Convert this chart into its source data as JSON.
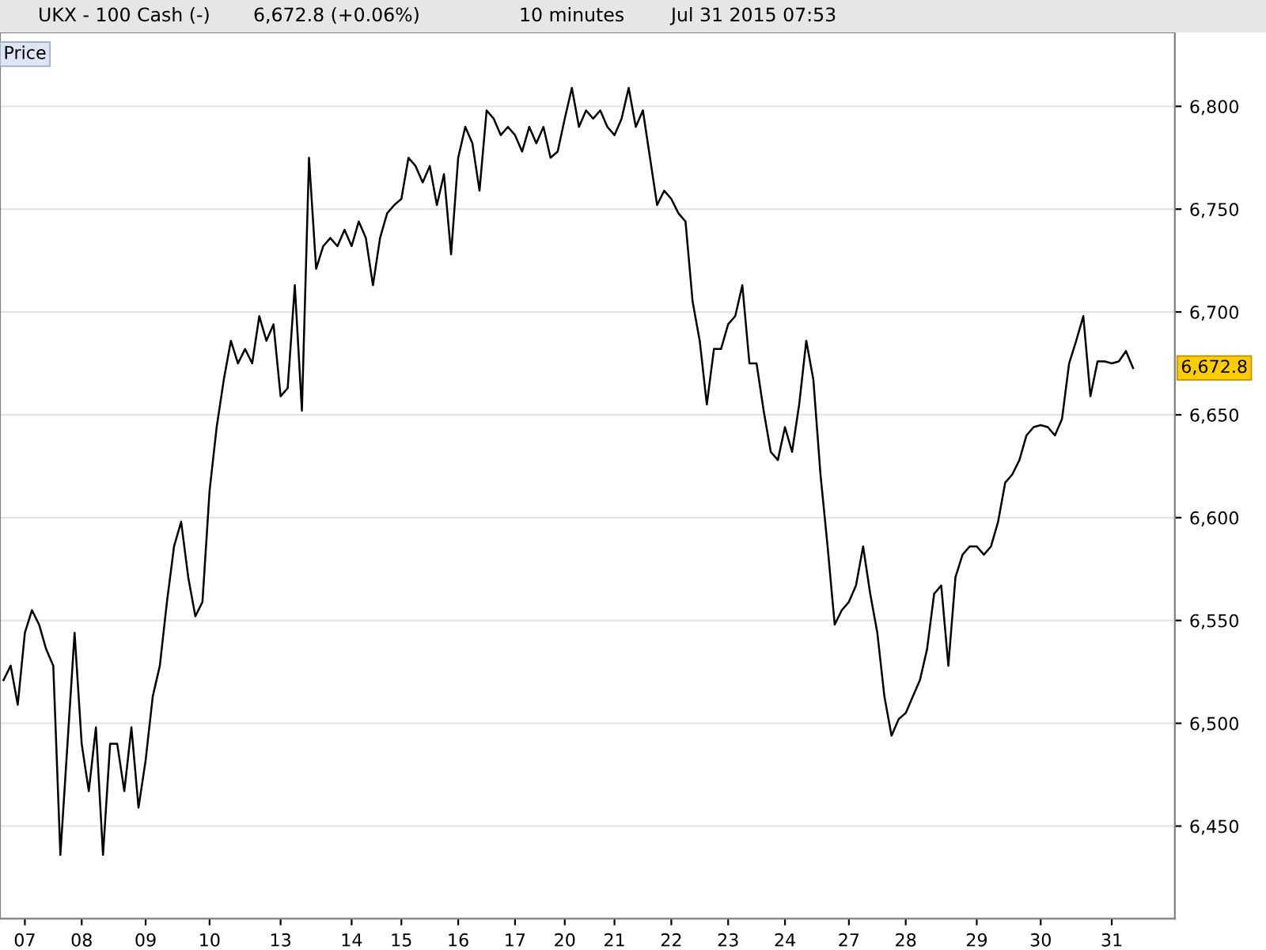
{
  "chart_data": {
    "type": "line",
    "title": "UKX - 100 Cash (-)",
    "annotations": [
      "6,672.8 (+0.06%)",
      "10 minutes",
      "Jul 31 2015 07:53",
      "Price",
      "6,672.8"
    ],
    "categories": [
      null,
      null,
      null,
      "07",
      null,
      null,
      null,
      null,
      null,
      null,
      null,
      "08",
      null,
      null,
      null,
      null,
      null,
      null,
      null,
      null,
      "09",
      null,
      null,
      null,
      null,
      null,
      null,
      null,
      null,
      "10",
      null,
      null,
      null,
      null,
      null,
      null,
      null,
      null,
      null,
      "13",
      null,
      null,
      null,
      null,
      null,
      null,
      null,
      null,
      null,
      "14",
      null,
      null,
      null,
      null,
      null,
      null,
      "15",
      null,
      null,
      null,
      null,
      null,
      null,
      null,
      "16",
      null,
      null,
      null,
      null,
      null,
      null,
      null,
      "17",
      null,
      null,
      null,
      null,
      null,
      null,
      "20",
      null,
      null,
      null,
      null,
      null,
      null,
      "21",
      null,
      null,
      null,
      null,
      null,
      null,
      null,
      "22",
      null,
      null,
      null,
      null,
      null,
      null,
      null,
      "23",
      null,
      null,
      null,
      null,
      null,
      null,
      null,
      "24",
      null,
      null,
      null,
      null,
      null,
      null,
      null,
      null,
      "27",
      null,
      null,
      null,
      null,
      null,
      null,
      null,
      "28",
      null,
      null,
      null,
      null,
      null,
      null,
      null,
      null,
      null,
      "29",
      null,
      null,
      null,
      null,
      null,
      null,
      null,
      null,
      "30",
      null,
      null,
      null,
      null,
      null,
      null,
      null,
      null,
      null,
      "31",
      null,
      null,
      null
    ],
    "series": [
      {
        "color": "#000000",
        "values": [
          6521,
          6528,
          6509,
          6544,
          6555,
          6548,
          6536,
          6528,
          6436,
          6490,
          6544,
          6490,
          6467,
          6498,
          6436,
          6490,
          6490,
          6467,
          6498,
          6459,
          6482,
          6513,
          6528,
          6559,
          6586,
          6598,
          6571,
          6552,
          6559,
          6613,
          6644,
          6667,
          6686,
          6675,
          6682,
          6675,
          6698,
          6686,
          6694,
          6659,
          6663,
          6713,
          6652,
          6775,
          6721,
          6732,
          6736,
          6732,
          6740,
          6732,
          6744,
          6736,
          6713,
          6736,
          6748,
          6752,
          6755,
          6775,
          6771,
          6763,
          6771,
          6752,
          6767,
          6728,
          6775,
          6790,
          6782,
          6759,
          6798,
          6794,
          6786,
          6790,
          6786,
          6778,
          6790,
          6782,
          6790,
          6775,
          6778,
          6794,
          6809,
          6790,
          6798,
          6794,
          6798,
          6790,
          6786,
          6794,
          6809,
          6790,
          6798,
          6775,
          6752,
          6759,
          6755,
          6748,
          6744,
          6705,
          6686,
          6655,
          6682,
          6682,
          6694,
          6698,
          6713,
          6675,
          6675,
          6652,
          6632,
          6628,
          6644,
          6632,
          6655,
          6686,
          6667,
          6621,
          6586,
          6548,
          6555,
          6559,
          6567,
          6586,
          6563,
          6544,
          6513,
          6494,
          6502,
          6505,
          6513,
          6521,
          6536,
          6563,
          6567,
          6528,
          6571,
          6582,
          6586,
          6586,
          6582,
          6586,
          6598,
          6617,
          6621,
          6628,
          6640,
          6644,
          6645,
          6644,
          6640,
          6648,
          6675,
          6686,
          6698,
          6659,
          6676,
          6676,
          6675,
          6676,
          6681,
          6672.8
        ]
      }
    ],
    "ylim": [
      6405,
      6836
    ],
    "yticks": [
      {
        "value": 6450,
        "label": "6,450"
      },
      {
        "value": 6500,
        "label": "6,500"
      },
      {
        "value": 6550,
        "label": "6,550"
      },
      {
        "value": 6600,
        "label": "6,600"
      },
      {
        "value": 6650,
        "label": "6,650"
      },
      {
        "value": 6700,
        "label": "6,700"
      },
      {
        "value": 6750,
        "label": "6,750"
      },
      {
        "value": 6800,
        "label": "6,800"
      }
    ],
    "grid": "y",
    "marker": "none",
    "line_style": "solid"
  }
}
